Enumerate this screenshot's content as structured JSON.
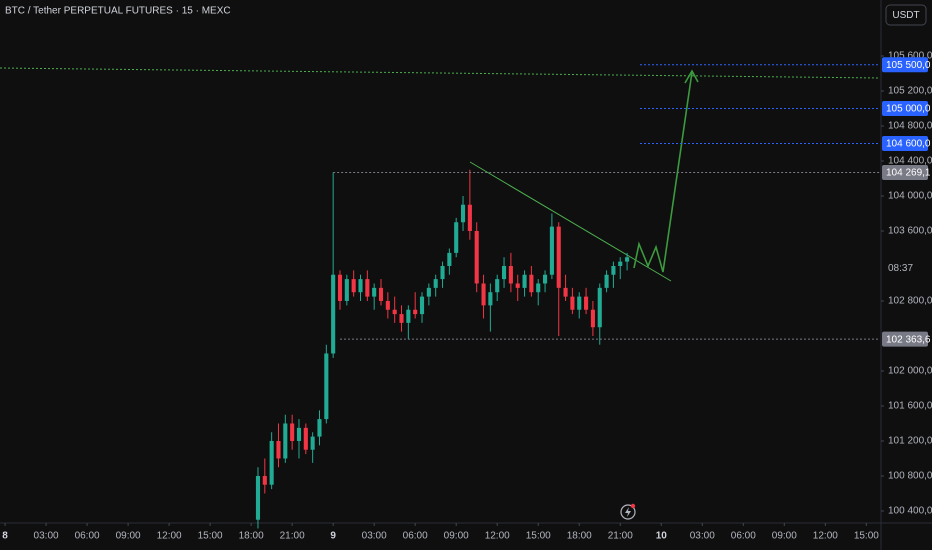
{
  "header": {
    "symbol": "BTC / Tether PERPETUAL FUTURES · 15 · MEXC",
    "currency": "USDT"
  },
  "chart_data": {
    "type": "candlestick",
    "x": [
      18.5,
      19,
      19.5,
      20,
      20.5,
      21,
      21.5,
      22,
      22.5,
      23,
      23.5,
      24,
      24.5,
      25,
      25.5,
      26,
      26.5,
      27,
      27.5,
      28,
      28.5,
      29,
      29.5,
      30,
      30.5,
      31,
      31.5,
      32,
      32.5,
      33,
      33.5,
      34,
      34.5,
      35,
      35.5,
      36,
      36.5,
      37,
      37.5,
      38,
      38.5,
      39,
      39.5,
      40,
      40.5,
      41,
      41.5,
      42,
      42.5,
      43,
      43.5,
      44,
      44.5,
      45,
      45.5
    ],
    "open": [
      100300,
      100800,
      100700,
      101200,
      101000,
      101400,
      101200,
      101350,
      101100,
      101250,
      101450,
      102200,
      103100,
      102800,
      103050,
      102900,
      103050,
      102850,
      102950,
      102800,
      102700,
      102650,
      102550,
      102700,
      102650,
      102850,
      102950,
      103050,
      103200,
      103350,
      103700,
      103900,
      103600,
      103000,
      102750,
      102900,
      103050,
      103200,
      103000,
      102950,
      103100,
      102900,
      103000,
      103100,
      103650,
      102950,
      102850,
      102700,
      102850,
      102700,
      102500,
      102950,
      103100,
      103200,
      103250
    ],
    "high": [
      100900,
      101000,
      101300,
      101400,
      101500,
      101500,
      101450,
      101400,
      101300,
      101550,
      102300,
      104269.1,
      103150,
      103100,
      103150,
      103100,
      103150,
      103000,
      103050,
      102900,
      102850,
      102750,
      102750,
      102900,
      102900,
      103000,
      103100,
      103250,
      103400,
      103750,
      104000,
      104300,
      103700,
      103100,
      103000,
      103100,
      103300,
      103350,
      103100,
      103150,
      103200,
      103050,
      103150,
      103800,
      103700,
      103100,
      102950,
      102900,
      102950,
      102800,
      103000,
      103150,
      103250,
      103300,
      103350
    ],
    "low": [
      100200,
      100600,
      100650,
      100900,
      100950,
      101100,
      101000,
      101050,
      100950,
      101150,
      101400,
      102150,
      102700,
      102750,
      102850,
      102800,
      102800,
      102700,
      102750,
      102600,
      102550,
      102450,
      102363.6,
      102600,
      102550,
      102750,
      102850,
      102950,
      103100,
      103300,
      103600,
      103500,
      102900,
      102600,
      102450,
      102800,
      102950,
      102900,
      102800,
      102850,
      102850,
      102750,
      102900,
      103050,
      102400,
      102800,
      102650,
      102600,
      102650,
      102400,
      102300,
      102900,
      102950,
      103050,
      103150
    ],
    "close": [
      100800,
      100700,
      101200,
      101000,
      101400,
      101200,
      101350,
      101100,
      101250,
      101450,
      102200,
      103100,
      102800,
      103050,
      102900,
      103050,
      102850,
      102950,
      102800,
      102700,
      102650,
      102550,
      102700,
      102650,
      102850,
      102950,
      103050,
      103200,
      103350,
      103700,
      103900,
      103600,
      103000,
      102750,
      102900,
      103050,
      103200,
      103000,
      102950,
      103100,
      102900,
      103000,
      103100,
      103650,
      102950,
      102850,
      102700,
      102850,
      102700,
      102500,
      102950,
      103100,
      103200,
      103250,
      103300
    ],
    "up_color": "#22ab94",
    "down_color": "#f23645",
    "xlim": [
      -0.37,
      64
    ],
    "xticks": [
      {
        "value": 0,
        "label": "8"
      },
      {
        "value": 3,
        "label": "03:00"
      },
      {
        "value": 6,
        "label": "06:00"
      },
      {
        "value": 9,
        "label": "09:00"
      },
      {
        "value": 12,
        "label": "12:00"
      },
      {
        "value": 15,
        "label": "15:00"
      },
      {
        "value": 18,
        "label": "18:00"
      },
      {
        "value": 21,
        "label": "21:00"
      },
      {
        "value": 24,
        "label": "9"
      },
      {
        "value": 27,
        "label": "03:00"
      },
      {
        "value": 30,
        "label": "06:00"
      },
      {
        "value": 33,
        "label": "09:00"
      },
      {
        "value": 36,
        "label": "12:00"
      },
      {
        "value": 39,
        "label": "15:00"
      },
      {
        "value": 42,
        "label": "18:00"
      },
      {
        "value": 45,
        "label": "21:00"
      },
      {
        "value": 48,
        "label": "10"
      },
      {
        "value": 51,
        "label": "03:00"
      },
      {
        "value": 54,
        "label": "06:00"
      },
      {
        "value": 57,
        "label": "09:00"
      },
      {
        "value": 60,
        "label": "12:00"
      },
      {
        "value": 63,
        "label": "15:00"
      }
    ],
    "ylim": [
      100274,
      106240
    ],
    "yticks": [
      {
        "value": 105600,
        "label": "105 600,0"
      },
      {
        "value": 105200,
        "label": "105 200,0"
      },
      {
        "value": 104800,
        "label": "104 800,0"
      },
      {
        "value": 104400,
        "label": "104 400,0"
      },
      {
        "value": 104000,
        "label": "104 000,0"
      },
      {
        "value": 103600,
        "label": "103 600,0"
      },
      {
        "value": 102800,
        "label": "102 800,0"
      },
      {
        "value": 102000,
        "label": "102 000,0"
      },
      {
        "value": 101600,
        "label": "101 600,0"
      },
      {
        "value": 101200,
        "label": "101 200,0"
      },
      {
        "value": 100800,
        "label": "100 800,0"
      },
      {
        "value": 100400,
        "label": "100 400,0"
      }
    ],
    "price_labels": [
      {
        "value": 105500,
        "label": "105 500,0",
        "color": "#2962ff"
      },
      {
        "value": 105000,
        "label": "105 000,0",
        "color": "#2962ff"
      },
      {
        "value": 104600,
        "label": "104 600,0",
        "color": "#2962ff"
      },
      {
        "value": 104269.1,
        "label": "104 269,1",
        "color": "#787b86"
      },
      {
        "value": 102363.6,
        "label": "102 363,6",
        "color": "#787b86"
      }
    ],
    "countdown": "08:37"
  }
}
